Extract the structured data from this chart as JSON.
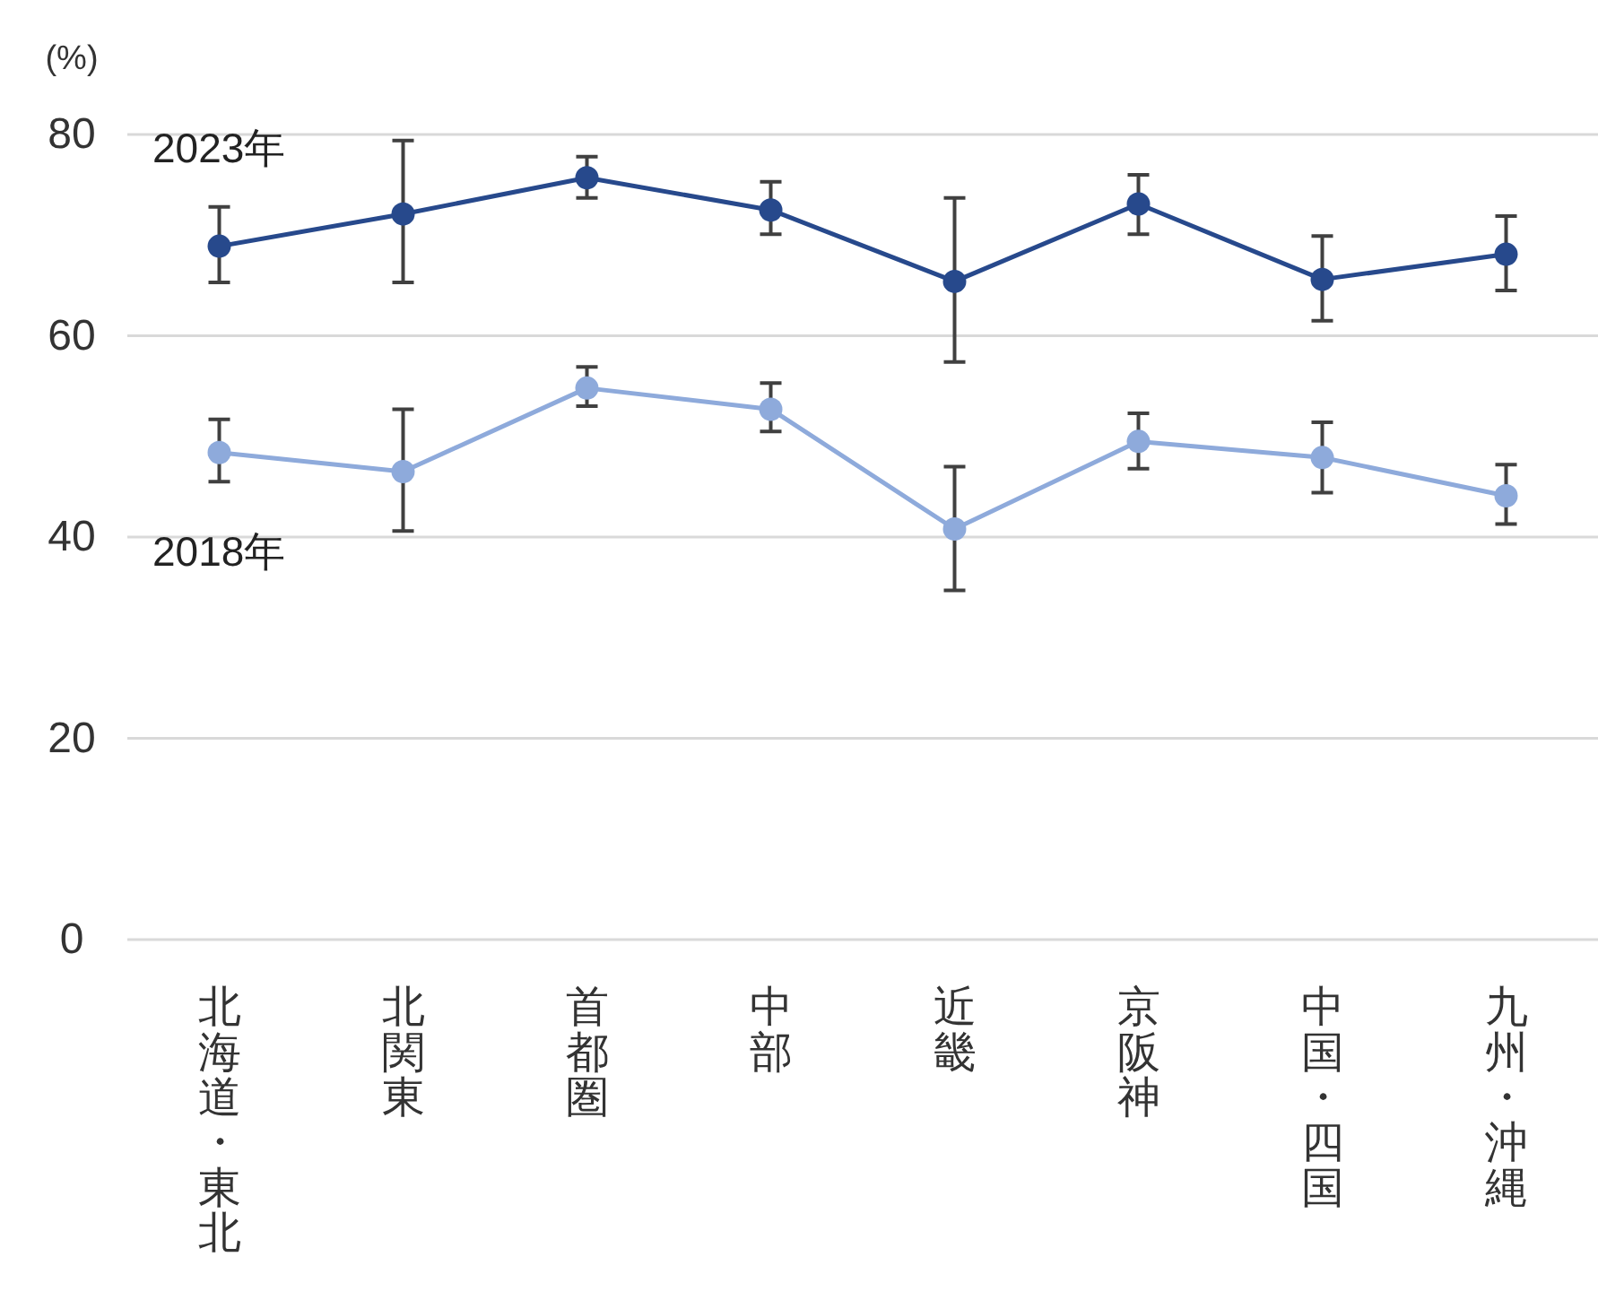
{
  "chart_data": {
    "type": "line",
    "ylabel": "(%)",
    "categories": [
      "北海道・東北",
      "北関東",
      "首都圏",
      "中部",
      "近畿",
      "京阪神",
      "中国・四国",
      "九州・沖縄"
    ],
    "series": [
      {
        "name": "2023年",
        "color": "#27498c",
        "values": [
          68.9,
          72.1,
          75.7,
          72.5,
          65.4,
          73.1,
          65.6,
          68.1
        ],
        "errors": [
          [
            65.3,
            72.8
          ],
          [
            65.3,
            79.4
          ],
          [
            73.7,
            77.8
          ],
          [
            70.1,
            75.3
          ],
          [
            57.4,
            73.7
          ],
          [
            70.1,
            76.0
          ],
          [
            61.5,
            69.9
          ],
          [
            64.5,
            71.9
          ]
        ]
      },
      {
        "name": "2018年",
        "color": "#8eaadb",
        "values": [
          48.4,
          46.5,
          54.8,
          52.7,
          40.8,
          49.5,
          47.9,
          44.1
        ],
        "errors": [
          [
            45.5,
            51.7
          ],
          [
            40.6,
            52.7
          ],
          [
            53.0,
            56.9
          ],
          [
            50.5,
            55.3
          ],
          [
            34.7,
            47.0
          ],
          [
            46.8,
            52.3
          ],
          [
            44.4,
            51.4
          ],
          [
            41.3,
            47.2
          ]
        ]
      }
    ],
    "ylim": [
      0,
      80
    ],
    "yticks": [
      0,
      20,
      40,
      60,
      80
    ],
    "grid": "y",
    "marker": "circle",
    "line_style": "solid"
  }
}
